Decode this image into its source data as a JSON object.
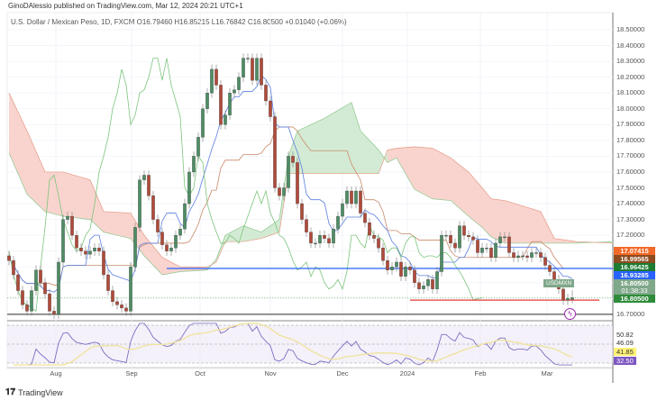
{
  "header": {
    "published": "GinoDAlessio published on TradingView.com, Mar 12, 2024 20:21 UTC+1",
    "legend": "U.S. Dollar / Mexican Peso, 1D, FXCM  O16.79460  H16.85215  L16.76842  C16.80500  +0.01040 (+0.06%)"
  },
  "symbol_tag": "USDMXN",
  "footer": {
    "logo": "TradingView"
  },
  "price_labels": [
    {
      "value": "17.07415",
      "color": "#f26a2a"
    },
    {
      "value": "16.99565",
      "color": "#8d4b1f"
    },
    {
      "value": "16.96425",
      "color": "#1e7b32"
    },
    {
      "value": "16.93285",
      "color": "#2962ff"
    },
    {
      "value": "16.80500",
      "color": "#7fa88a",
      "countdown": "01:38:33"
    },
    {
      "value": "16.80500",
      "color": "#2e8b3a"
    }
  ],
  "rsi_labels": [
    {
      "value": "50.82",
      "bg": "#ffffff",
      "fg": "#333333"
    },
    {
      "value": "46.09",
      "bg": "#ffffff",
      "fg": "#333333"
    },
    {
      "value": "41.85",
      "bg": "#fff176",
      "fg": "#333333"
    },
    {
      "value": "32.50",
      "bg": "#7e57c2",
      "fg": "#ffffff"
    }
  ],
  "chart_data": {
    "type": "candlestick",
    "indicators": [
      "Ichimoku Cloud",
      "RSI"
    ],
    "y_axis": {
      "ticks": [
        "18.50000",
        "18.40000",
        "18.30000",
        "18.20000",
        "18.10000",
        "18.00000",
        "17.90000",
        "17.80000",
        "17.70000",
        "17.60000",
        "17.50000",
        "17.40000",
        "17.30000",
        "17.20000",
        "16.70000"
      ],
      "range": [
        16.66,
        18.58
      ]
    },
    "x_axis": {
      "ticks": [
        "Aug",
        "Sep",
        "Oct",
        "Nov",
        "Dec",
        "2024",
        "Feb",
        "Mar"
      ]
    },
    "colors": {
      "up": "#4e8d64",
      "down": "#b04a3a",
      "tenkan": "#5b7fe0",
      "kijun": "#c98a6a",
      "chikou": "#7cc47c",
      "cloud_bull": "#c8e6c9",
      "cloud_bear": "#f8c9c2",
      "rsi": "#7e6cc2",
      "rsi_ma": "#f0e3a0"
    },
    "closes": [
      17.04,
      16.95,
      16.85,
      16.76,
      16.72,
      16.85,
      16.98,
      16.9,
      16.83,
      16.72,
      16.7,
      17.03,
      17.3,
      17.32,
      17.2,
      17.12,
      17.1,
      17.08,
      17.1,
      17.12,
      17.1,
      16.95,
      16.85,
      16.78,
      16.76,
      16.74,
      16.72,
      17.0,
      17.25,
      17.55,
      17.58,
      17.45,
      17.3,
      17.22,
      17.14,
      17.1,
      17.12,
      17.2,
      17.24,
      17.4,
      17.6,
      17.7,
      17.82,
      18.0,
      18.1,
      18.25,
      18.15,
      17.9,
      17.96,
      18.1,
      18.12,
      18.2,
      18.32,
      18.32,
      18.18,
      18.32,
      18.15,
      18.05,
      17.95,
      17.5,
      17.45,
      17.5,
      17.7,
      17.66,
      17.4,
      17.3,
      17.22,
      17.15,
      17.15,
      17.2,
      17.18,
      17.15,
      17.24,
      17.32,
      17.4,
      17.48,
      17.4,
      17.48,
      17.34,
      17.28,
      17.2,
      17.18,
      17.12,
      17.04,
      16.98,
      17.0,
      17.03,
      16.94,
      17.0,
      16.98,
      16.9,
      16.86,
      16.88,
      16.92,
      16.86,
      16.97,
      17.2,
      17.2,
      17.15,
      17.12,
      17.26,
      17.2,
      17.19,
      17.17,
      17.09,
      17.12,
      17.12,
      17.06,
      17.15,
      17.19,
      17.19,
      17.09,
      17.06,
      17.07,
      17.07,
      17.06,
      17.09,
      17.09,
      17.06,
      17.01,
      16.97,
      16.92,
      16.86,
      16.79,
      16.8,
      16.805
    ],
    "last_ohlc": {
      "open": 16.7946,
      "high": 16.85215,
      "low": 16.76842,
      "close": 16.805
    },
    "cloud": [
      [
        0,
        17.72,
        18.1
      ],
      [
        4,
        17.46,
        17.86
      ],
      [
        8,
        17.35,
        17.6
      ],
      [
        12,
        17.32,
        17.6
      ],
      [
        18,
        17.3,
        17.55
      ],
      [
        21,
        17.22,
        17.35
      ],
      [
        27,
        17.18,
        17.34
      ],
      [
        30,
        17.07,
        17.2
      ],
      [
        34,
        16.95,
        17.06
      ],
      [
        38,
        16.97,
        17.0
      ],
      [
        44,
        16.98,
        17.0
      ],
      [
        46,
        17.05,
        17.03
      ],
      [
        48,
        17.2,
        17.16
      ],
      [
        52,
        17.26,
        17.16
      ],
      [
        56,
        17.22,
        17.18
      ],
      [
        60,
        17.3,
        17.22
      ],
      [
        62,
        17.7,
        17.59
      ],
      [
        64,
        17.86,
        17.59
      ],
      [
        70,
        17.94,
        17.59
      ],
      [
        76,
        18.04,
        17.59
      ],
      [
        78,
        17.86,
        17.59
      ],
      [
        82,
        17.74,
        17.59
      ],
      [
        84,
        17.66,
        17.74
      ],
      [
        86,
        17.69,
        17.75
      ],
      [
        90,
        17.49,
        17.76
      ],
      [
        94,
        17.43,
        17.75
      ],
      [
        98,
        17.42,
        17.69
      ],
      [
        102,
        17.32,
        17.6
      ],
      [
        105,
        17.25,
        17.5
      ],
      [
        107,
        17.19,
        17.43
      ],
      [
        110,
        17.15,
        17.42
      ],
      [
        118,
        17.15,
        17.35
      ],
      [
        121,
        17.15,
        17.18
      ],
      [
        126,
        17.15,
        17.16
      ],
      [
        134,
        17.16,
        17.15
      ]
    ],
    "horizontal_lines": [
      {
        "price": 16.99,
        "color": "#2962ff"
      },
      {
        "price": 16.79,
        "color": "#e53935"
      },
      {
        "price": 16.7,
        "color": "#555555"
      }
    ],
    "rsi_levels": [
      70,
      50,
      30
    ]
  }
}
